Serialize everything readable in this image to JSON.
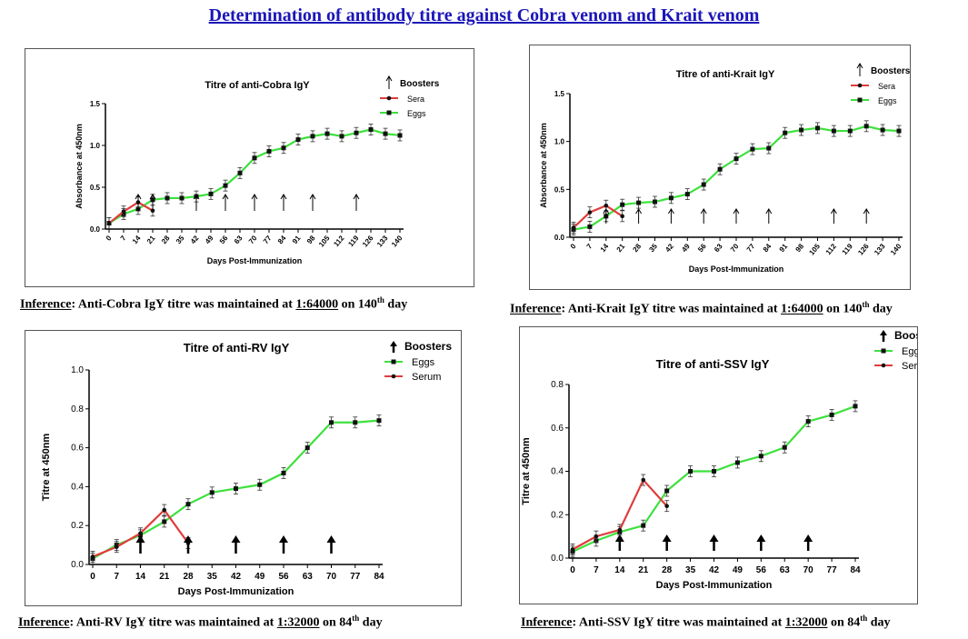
{
  "page_title": "Determination of antibody titre against Cobra venom  and Krait venom",
  "inferences": [
    {
      "label": "Inference",
      "pre": ": Anti-Cobra IgY titre was maintained at ",
      "ratio": "1:64000",
      "mid": " on 140",
      "sup": "th",
      "post": " day"
    },
    {
      "label": "Inference",
      "pre": ": Anti-Krait IgY titre was maintained at ",
      "ratio": "1:64000",
      "mid": " on 140",
      "sup": "th",
      "post": " day"
    },
    {
      "label": "Inference",
      "pre": ": Anti-RV IgY titre was maintained at ",
      "ratio": "1:32000",
      "mid": " on 84",
      "sup": "th",
      "post": " day"
    },
    {
      "label": "Inference",
      "pre": ": Anti-SSV IgY titre was maintained at ",
      "ratio": "1:32000",
      "mid": " on 84",
      "sup": "th",
      "post": " day"
    }
  ],
  "colors": {
    "eggs": "#3ee03e",
    "serum": "#e03c3c",
    "marker": "#111111",
    "title": "#1a16b8"
  },
  "chart_data": [
    {
      "type": "line",
      "title": "Titre of anti-Cobra IgY",
      "xlabel": "Days Post-Immunization",
      "ylabel": "Absorbance at 450nm",
      "ylim": [
        0,
        1.5
      ],
      "yticks": [
        "0.0",
        "0.5",
        "1.0",
        "1.5"
      ],
      "x": [
        0,
        7,
        14,
        21,
        28,
        35,
        42,
        49,
        56,
        63,
        70,
        77,
        84,
        91,
        98,
        105,
        112,
        119,
        126,
        133,
        140
      ],
      "xtick_rotated": true,
      "legend": [
        "Boosters",
        "Sera",
        "Eggs"
      ],
      "series": [
        {
          "name": "Eggs",
          "x": [
            0,
            7,
            14,
            21,
            28,
            35,
            42,
            49,
            56,
            63,
            70,
            77,
            84,
            91,
            98,
            105,
            112,
            119,
            126,
            133,
            140
          ],
          "values": [
            0.07,
            0.18,
            0.24,
            0.35,
            0.37,
            0.37,
            0.39,
            0.42,
            0.52,
            0.67,
            0.85,
            0.93,
            0.97,
            1.07,
            1.11,
            1.14,
            1.11,
            1.15,
            1.19,
            1.14,
            1.12
          ]
        },
        {
          "name": "Sera",
          "x": [
            0,
            7,
            14,
            21
          ],
          "values": [
            0.07,
            0.21,
            0.32,
            0.22
          ]
        }
      ],
      "boosters": [
        14,
        21,
        42,
        56,
        70,
        84,
        98,
        119
      ]
    },
    {
      "type": "line",
      "title": "Titre of anti-Krait IgY",
      "xlabel": "Days Post-Immunization",
      "ylabel": "Absorbance at 450nm",
      "ylim": [
        0,
        1.5
      ],
      "yticks": [
        "0.0",
        "0.5",
        "1.0",
        "1.5"
      ],
      "x": [
        0,
        7,
        14,
        21,
        28,
        35,
        42,
        49,
        56,
        63,
        70,
        77,
        84,
        91,
        98,
        105,
        112,
        119,
        126,
        133,
        140
      ],
      "xtick_rotated": true,
      "legend": [
        "Boosters",
        "Sera",
        "Eggs"
      ],
      "series": [
        {
          "name": "Eggs",
          "x": [
            0,
            7,
            14,
            21,
            28,
            35,
            42,
            49,
            56,
            63,
            70,
            77,
            84,
            91,
            98,
            105,
            112,
            119,
            126,
            133,
            140
          ],
          "values": [
            0.08,
            0.11,
            0.22,
            0.34,
            0.36,
            0.37,
            0.41,
            0.45,
            0.55,
            0.71,
            0.82,
            0.92,
            0.93,
            1.09,
            1.12,
            1.14,
            1.11,
            1.11,
            1.16,
            1.12,
            1.11
          ]
        },
        {
          "name": "Sera",
          "x": [
            0,
            7,
            14,
            21
          ],
          "values": [
            0.1,
            0.26,
            0.33,
            0.22
          ]
        }
      ],
      "boosters": [
        14,
        28,
        42,
        56,
        70,
        84,
        112,
        126
      ]
    },
    {
      "type": "line",
      "title": "Titre of anti-RV IgY",
      "xlabel": "Days Post-Immunization",
      "ylabel": "Titre at 450nm",
      "ylim": [
        0,
        1.0
      ],
      "yticks": [
        "0.0",
        "0.2",
        "0.4",
        "0.6",
        "0.8",
        "1.0"
      ],
      "x": [
        0,
        7,
        14,
        21,
        28,
        35,
        42,
        49,
        56,
        63,
        70,
        77,
        84
      ],
      "xtick_rotated": false,
      "legend": [
        "Boosters",
        "Eggs",
        "Serum"
      ],
      "series": [
        {
          "name": "Eggs",
          "x": [
            0,
            7,
            14,
            21,
            28,
            35,
            42,
            49,
            56,
            63,
            70,
            77,
            84
          ],
          "values": [
            0.03,
            0.1,
            0.15,
            0.22,
            0.31,
            0.37,
            0.39,
            0.41,
            0.47,
            0.6,
            0.73,
            0.73,
            0.74
          ]
        },
        {
          "name": "Serum",
          "x": [
            0,
            7,
            14,
            21,
            28
          ],
          "values": [
            0.04,
            0.09,
            0.16,
            0.28,
            0.11
          ]
        }
      ],
      "boosters": [
        14,
        28,
        42,
        56,
        70
      ]
    },
    {
      "type": "line",
      "title": "Titre of anti-SSV IgY",
      "xlabel": "Days Post-Immunization",
      "ylabel": "Titre at 450nm",
      "ylim": [
        0,
        0.8
      ],
      "yticks": [
        "0.0",
        "0.2",
        "0.4",
        "0.6",
        "0.8"
      ],
      "x": [
        0,
        7,
        14,
        21,
        28,
        35,
        42,
        49,
        56,
        63,
        70,
        77,
        84
      ],
      "xtick_rotated": false,
      "legend": [
        "Boosters",
        "Eggs",
        "Serum"
      ],
      "series": [
        {
          "name": "Eggs",
          "x": [
            0,
            7,
            14,
            21,
            28,
            35,
            42,
            49,
            56,
            63,
            70,
            77,
            84
          ],
          "values": [
            0.03,
            0.08,
            0.12,
            0.15,
            0.31,
            0.4,
            0.4,
            0.44,
            0.47,
            0.51,
            0.63,
            0.66,
            0.7
          ]
        },
        {
          "name": "Serum",
          "x": [
            0,
            7,
            14,
            21,
            28
          ],
          "values": [
            0.04,
            0.1,
            0.13,
            0.36,
            0.24
          ]
        }
      ],
      "boosters": [
        14,
        28,
        42,
        56,
        70
      ]
    }
  ]
}
